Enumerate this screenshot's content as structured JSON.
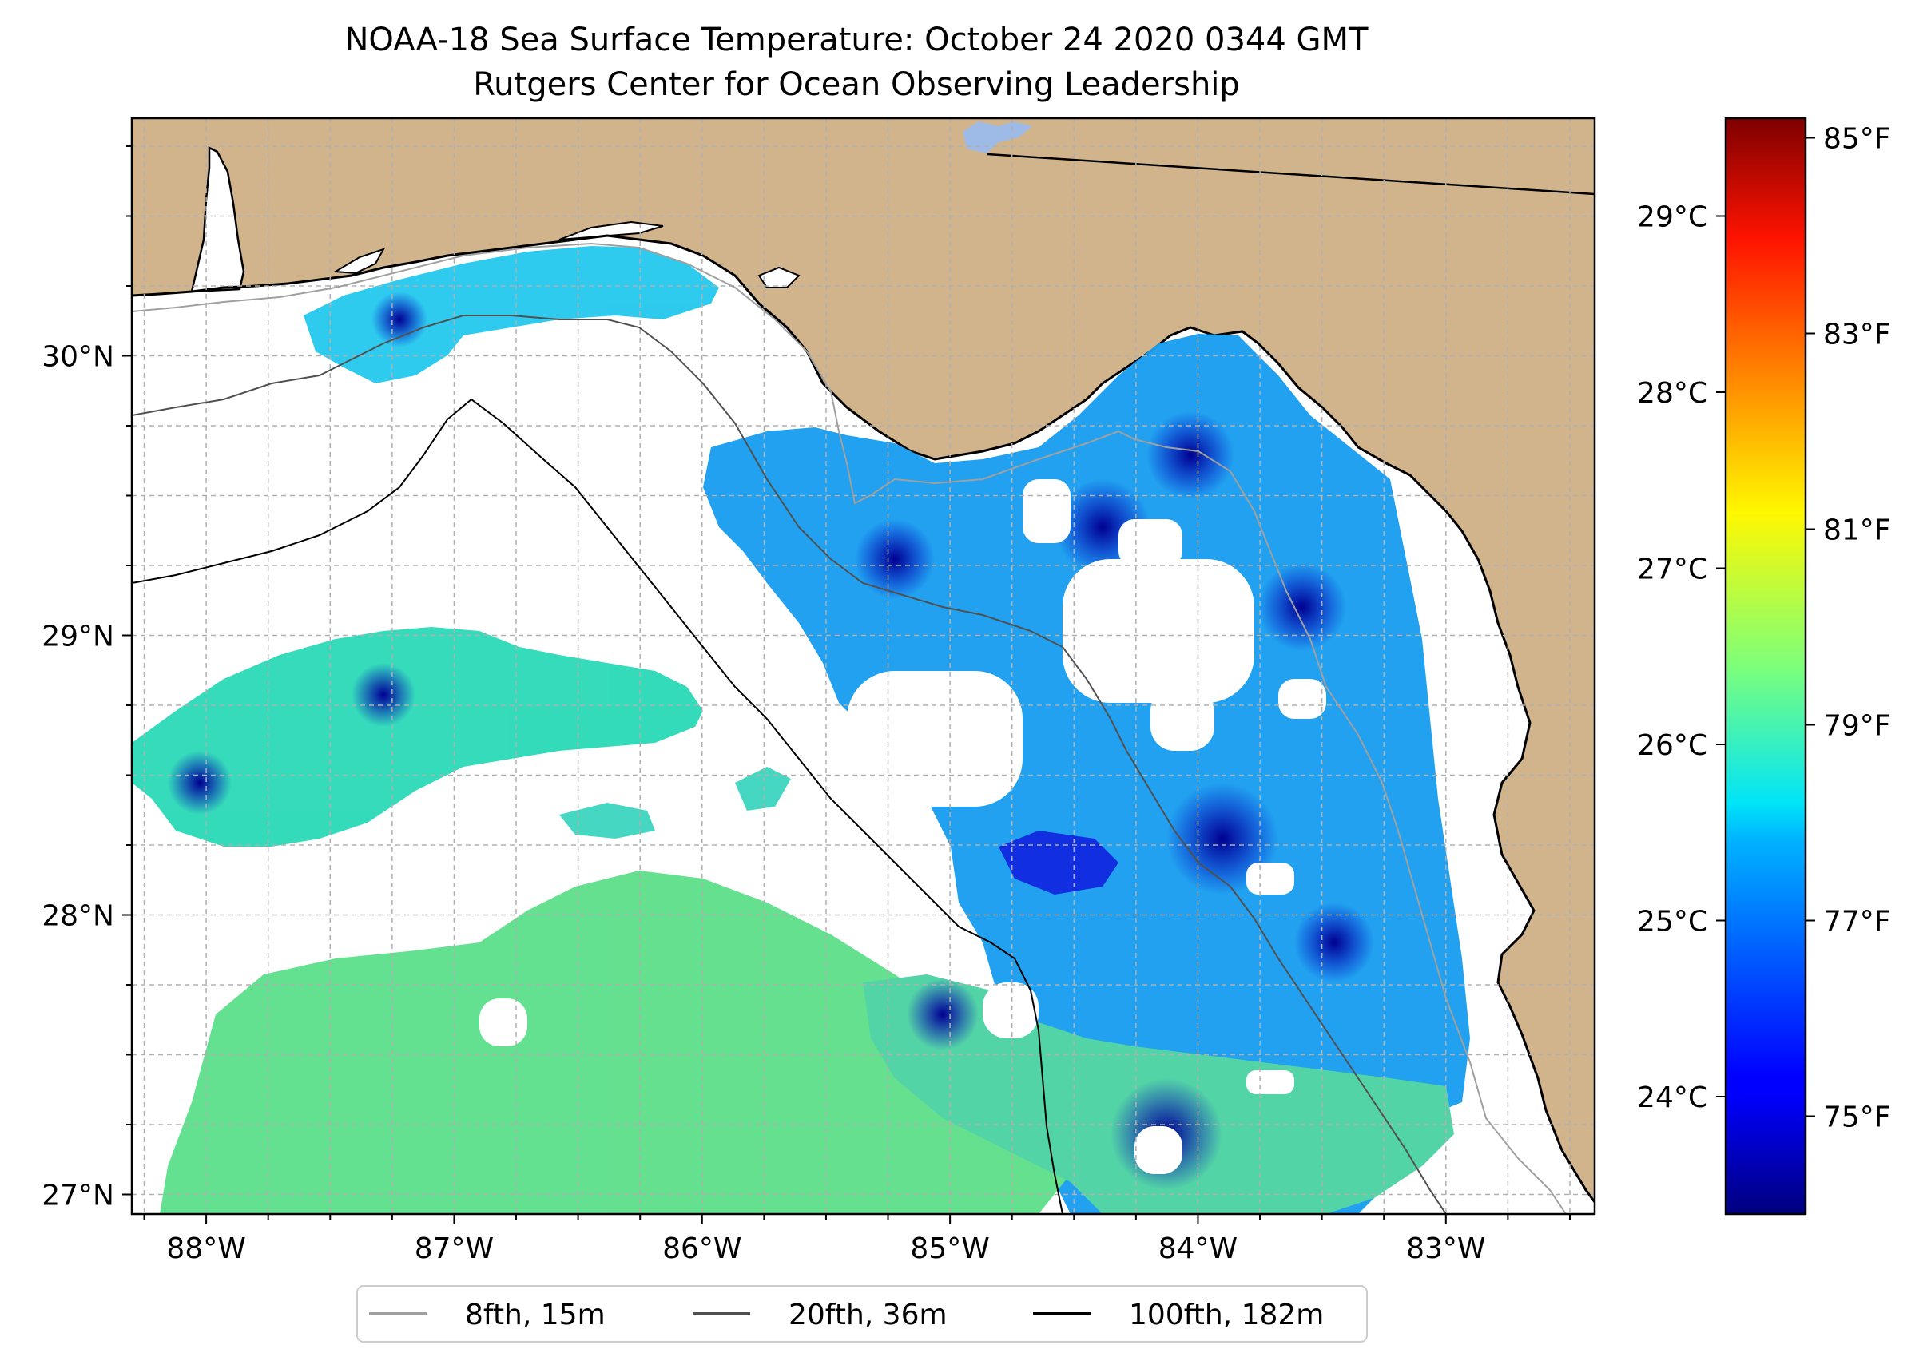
{
  "title": {
    "line1": "NOAA-18 Sea Surface Temperature: October 24 2020 0344 GMT",
    "line2": "Rutgers Center for Ocean Observing Leadership"
  },
  "map": {
    "lon_range": [
      -88.3,
      -82.4
    ],
    "lat_range": [
      26.93,
      30.85
    ],
    "grid_step_deg": 0.25,
    "grid": true,
    "colors": {
      "land": "#d2b48c",
      "water_nodata": "#ffffff",
      "coastline": "#000000",
      "grid": "#b0b0b0",
      "lake": "#9dbbe6"
    },
    "xticks": [
      {
        "value": -88,
        "label": "88°W"
      },
      {
        "value": -87,
        "label": "87°W"
      },
      {
        "value": -86,
        "label": "86°W"
      },
      {
        "value": -85,
        "label": "85°W"
      },
      {
        "value": -84,
        "label": "84°W"
      },
      {
        "value": -83,
        "label": "83°W"
      }
    ],
    "yticks": [
      {
        "value": 30,
        "label": "30°N"
      },
      {
        "value": 29,
        "label": "29°N"
      },
      {
        "value": 28,
        "label": "28°N"
      },
      {
        "value": 27,
        "label": "27°N"
      }
    ]
  },
  "isobaths": [
    {
      "label": "8fth, 15m",
      "color": "#a0a0a0"
    },
    {
      "label": "20fth, 36m",
      "color": "#505050"
    },
    {
      "label": "100fth, 182m",
      "color": "#000000"
    }
  ],
  "colorbar": {
    "colormap": "jet",
    "celsius_ticks": [
      {
        "value": 24,
        "label": "24°C"
      },
      {
        "value": 25,
        "label": "25°C"
      },
      {
        "value": 26,
        "label": "26°C"
      },
      {
        "value": 27,
        "label": "27°C"
      },
      {
        "value": 28,
        "label": "28°C"
      },
      {
        "value": 29,
        "label": "29°C"
      }
    ],
    "fahrenheit_ticks": [
      {
        "value": 75,
        "label": "75°F"
      },
      {
        "value": 77,
        "label": "77°F"
      },
      {
        "value": 79,
        "label": "79°F"
      },
      {
        "value": 81,
        "label": "81°F"
      },
      {
        "value": 83,
        "label": "83°F"
      },
      {
        "value": 85,
        "label": "85°F"
      }
    ],
    "range_f": [
      74.0,
      85.2
    ]
  }
}
